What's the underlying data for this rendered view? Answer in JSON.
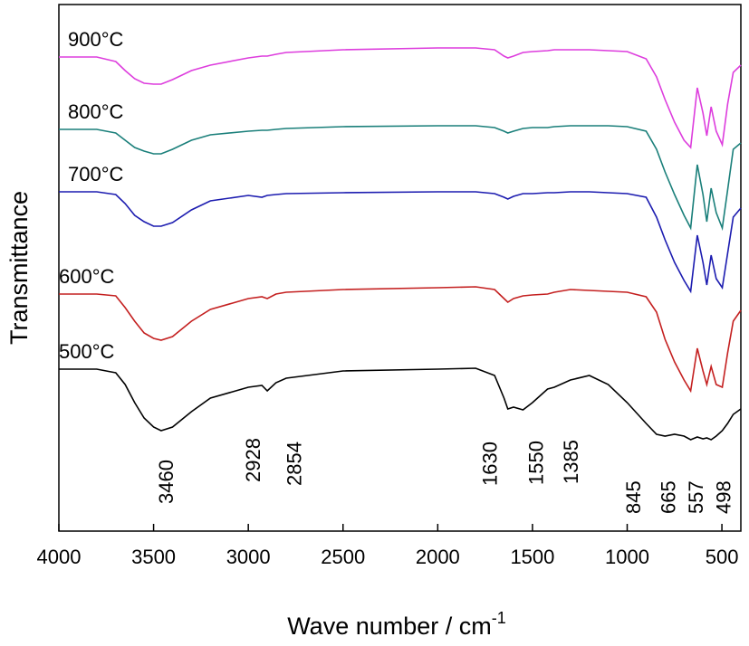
{
  "chart_data": {
    "type": "line",
    "xlabel": "Wave number / cm",
    "xlabel_sup": "-1",
    "ylabel": "Transmittance",
    "xlim": [
      4000,
      400
    ],
    "ylim": [
      0,
      582
    ],
    "xticks": [
      4000,
      3500,
      3000,
      2500,
      2000,
      1500,
      1000,
      500
    ],
    "x": [
      4000,
      3800,
      3700,
      3650,
      3600,
      3550,
      3500,
      3460,
      3400,
      3300,
      3200,
      3000,
      2928,
      2900,
      2854,
      2800,
      2500,
      2000,
      1800,
      1700,
      1650,
      1630,
      1600,
      1550,
      1500,
      1420,
      1385,
      1300,
      1200,
      1100,
      1000,
      900,
      845,
      800,
      750,
      700,
      665,
      630,
      600,
      580,
      557,
      530,
      498,
      470,
      440,
      400
    ],
    "series": [
      {
        "name": "500°C",
        "color": "#000000",
        "values": [
          179,
          179,
          175,
          162,
          142,
          125,
          115,
          111,
          115,
          132,
          147,
          159,
          161,
          155,
          164,
          169,
          177,
          179,
          180,
          172,
          147,
          135,
          137,
          134,
          142,
          157,
          159,
          167,
          172,
          162,
          142,
          119,
          107,
          105,
          107,
          105,
          101,
          104,
          102,
          103,
          101,
          105,
          111,
          119,
          129,
          135
        ]
      },
      {
        "name": "600°C",
        "color": "#c42020",
        "values": [
          262,
          262,
          260,
          247,
          232,
          219,
          213,
          211,
          215,
          232,
          245,
          257,
          259,
          257,
          262,
          264,
          267,
          269,
          270,
          267,
          257,
          253,
          257,
          260,
          261,
          262,
          264,
          267,
          266,
          265,
          264,
          259,
          242,
          212,
          187,
          167,
          155,
          202,
          177,
          162,
          182,
          162,
          159,
          197,
          232,
          244
        ]
      },
      {
        "name": "700°C",
        "color": "#1c1cb0",
        "values": [
          375,
          375,
          372,
          362,
          349,
          342,
          337,
          337,
          341,
          355,
          365,
          371,
          369,
          371,
          372,
          373,
          374,
          375,
          375,
          373,
          369,
          367,
          370,
          373,
          373,
          374,
          374,
          375,
          375,
          374,
          373,
          369,
          347,
          322,
          297,
          277,
          265,
          327,
          297,
          272,
          305,
          279,
          269,
          307,
          347,
          357
        ]
      },
      {
        "name": "800°C",
        "color": "#1a7f7a",
        "values": [
          444,
          444,
          440,
          432,
          424,
          420,
          417,
          417,
          422,
          432,
          438,
          442,
          443,
          443,
          444,
          445,
          447,
          448,
          448,
          446,
          442,
          440,
          442,
          445,
          446,
          446,
          447,
          448,
          448,
          448,
          447,
          442,
          422,
          397,
          372,
          349,
          335,
          405,
          372,
          342,
          379,
          352,
          335,
          377,
          422,
          429
        ]
      },
      {
        "name": "900°C",
        "color": "#dd3ddd",
        "values": [
          524,
          524,
          519,
          509,
          500,
          495,
          494,
          494,
          499,
          509,
          515,
          523,
          525,
          525,
          527,
          529,
          532,
          534,
          534,
          532,
          525,
          523,
          525,
          529,
          530,
          531,
          532,
          532,
          532,
          531,
          530,
          522,
          502,
          477,
          452,
          432,
          424,
          490,
          462,
          437,
          469,
          442,
          427,
          472,
          507,
          515
        ]
      }
    ],
    "peak_labels": [
      3460,
      2928,
      2854,
      1630,
      1550,
      1385,
      845,
      665,
      557,
      498
    ]
  }
}
